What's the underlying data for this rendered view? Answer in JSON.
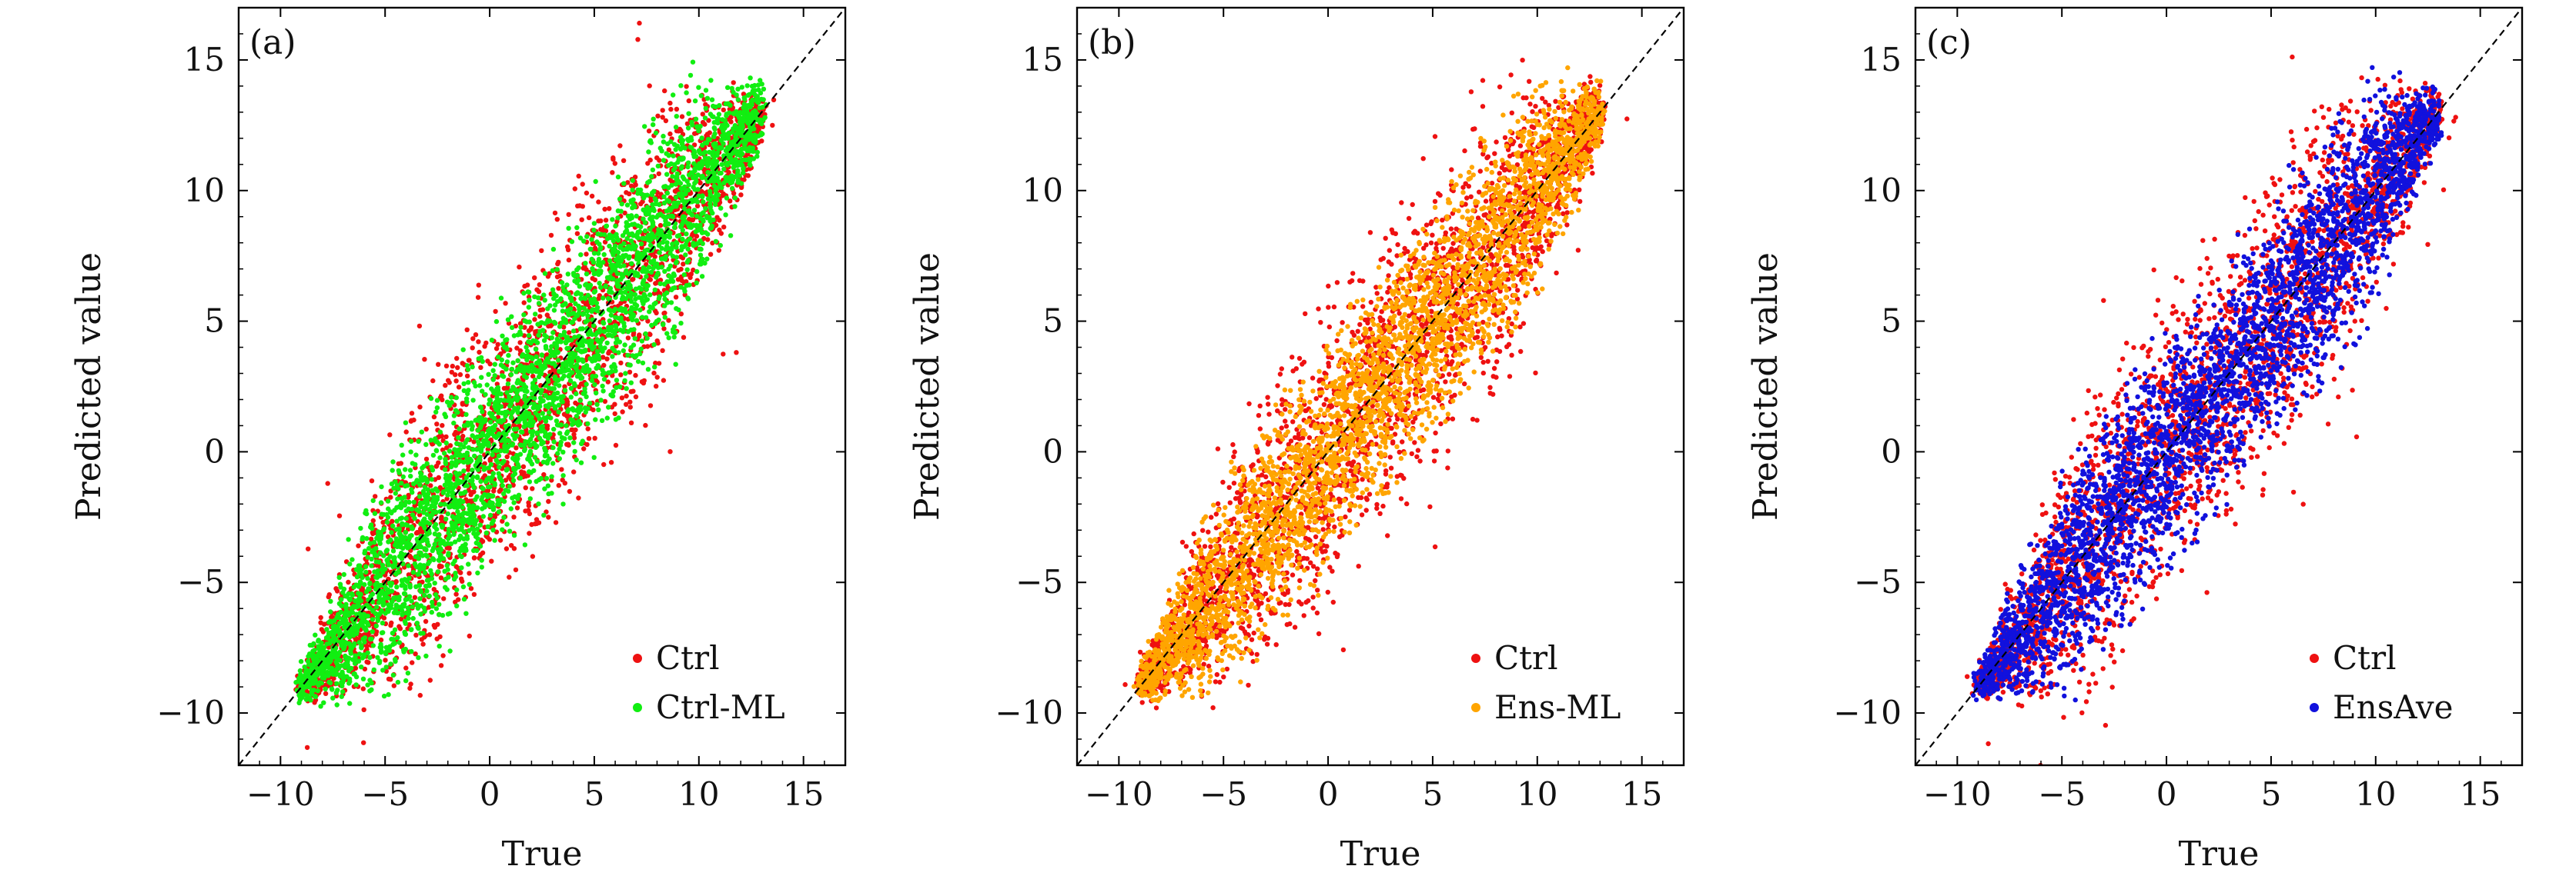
{
  "chart_data": [
    {
      "type": "scatter",
      "panel_label": "(a)",
      "xlabel": "True",
      "ylabel": "Predicted value",
      "xlim": [
        -12,
        17
      ],
      "ylim": [
        -12,
        17
      ],
      "xticks": [
        -10,
        -5,
        0,
        5,
        10,
        15
      ],
      "yticks": [
        -10,
        -5,
        0,
        5,
        10,
        15
      ],
      "xtick_labels": [
        "−10",
        "−5",
        "0",
        "5",
        "10",
        "15"
      ],
      "ytick_labels": [
        "−10",
        "−5",
        "0",
        "5",
        "10",
        "15"
      ],
      "legend_position": "lower-right",
      "reference_line": "y = x (dashed, black)",
      "series": [
        {
          "name": "Ctrl",
          "color": "#ee1111",
          "band": [
            -9,
            13
          ],
          "spread": 6.2
        },
        {
          "name": "Ctrl-ML",
          "color": "#11ee11",
          "band": [
            -9,
            13
          ],
          "spread": 5.2
        }
      ]
    },
    {
      "type": "scatter",
      "panel_label": "(b)",
      "xlabel": "True",
      "ylabel": "Predicted value",
      "xlim": [
        -12,
        17
      ],
      "ylim": [
        -12,
        17
      ],
      "xticks": [
        -10,
        -5,
        0,
        5,
        10,
        15
      ],
      "yticks": [
        -10,
        -5,
        0,
        5,
        10,
        15
      ],
      "xtick_labels": [
        "−10",
        "−5",
        "0",
        "5",
        "10",
        "15"
      ],
      "ytick_labels": [
        "−10",
        "−5",
        "0",
        "5",
        "10",
        "15"
      ],
      "legend_position": "lower-right",
      "reference_line": "y = x (dashed, black)",
      "series": [
        {
          "name": "Ctrl",
          "color": "#ee1111",
          "band": [
            -9,
            13
          ],
          "spread": 6.2
        },
        {
          "name": "Ens-ML",
          "color": "#ffa500",
          "band": [
            -9,
            13
          ],
          "spread": 4.6
        }
      ]
    },
    {
      "type": "scatter",
      "panel_label": "(c)",
      "xlabel": "True",
      "ylabel": "Predicted value",
      "xlim": [
        -12,
        17
      ],
      "ylim": [
        -12,
        17
      ],
      "xticks": [
        -10,
        -5,
        0,
        5,
        10,
        15
      ],
      "yticks": [
        -10,
        -5,
        0,
        5,
        10,
        15
      ],
      "xtick_labels": [
        "−10",
        "−5",
        "0",
        "5",
        "10",
        "15"
      ],
      "ytick_labels": [
        "−10",
        "−5",
        "0",
        "5",
        "10",
        "15"
      ],
      "legend_position": "lower-right",
      "reference_line": "y = x (dashed, black)",
      "series": [
        {
          "name": "Ctrl",
          "color": "#ee1111",
          "band": [
            -9,
            13
          ],
          "spread": 6.2
        },
        {
          "name": "EnsAve",
          "color": "#1111dd",
          "band": [
            -9,
            13
          ],
          "spread": 5.0
        }
      ]
    }
  ]
}
